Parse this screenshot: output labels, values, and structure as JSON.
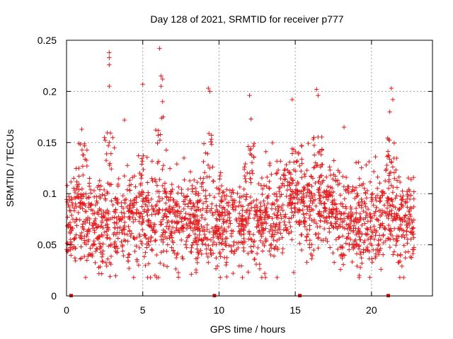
{
  "chart_data": {
    "type": "scatter",
    "title": "Day 128 of 2021, SRMTID for receiver p777",
    "xlabel": "GPS time / hours",
    "ylabel": "SRMTID / TECUs",
    "xlim": [
      0,
      24
    ],
    "ylim": [
      0,
      0.25
    ],
    "x_ticks": [
      0,
      5,
      10,
      15,
      20
    ],
    "x_tick_labels": [
      "0",
      "5",
      "10",
      "15",
      "20"
    ],
    "y_ticks": [
      0,
      0.05,
      0.1,
      0.15,
      0.2,
      0.25
    ],
    "y_tick_labels": [
      "0",
      "0.05",
      "0.1",
      "0.15",
      "0.2",
      "0.25"
    ],
    "grid": true,
    "marker": "+",
    "color": "#e41a1c",
    "baseline_marker_x": [
      0.3,
      9.7,
      15.3,
      21.1
    ],
    "outlier_points": [
      {
        "x": 2.8,
        "y": 0.238
      },
      {
        "x": 2.8,
        "y": 0.233
      },
      {
        "x": 2.8,
        "y": 0.226
      },
      {
        "x": 2.8,
        "y": 0.205
      },
      {
        "x": 6.1,
        "y": 0.242
      },
      {
        "x": 6.2,
        "y": 0.215
      },
      {
        "x": 6.3,
        "y": 0.212
      },
      {
        "x": 6.2,
        "y": 0.205
      },
      {
        "x": 6.3,
        "y": 0.19
      },
      {
        "x": 5.0,
        "y": 0.207
      },
      {
        "x": 9.3,
        "y": 0.203
      },
      {
        "x": 9.4,
        "y": 0.2
      },
      {
        "x": 12.0,
        "y": 0.196
      },
      {
        "x": 14.8,
        "y": 0.192
      },
      {
        "x": 16.4,
        "y": 0.202
      },
      {
        "x": 16.5,
        "y": 0.196
      },
      {
        "x": 21.3,
        "y": 0.203
      },
      {
        "x": 21.4,
        "y": 0.192
      },
      {
        "x": 21.2,
        "y": 0.18
      },
      {
        "x": 18.2,
        "y": 0.165
      },
      {
        "x": 1.0,
        "y": 0.163
      },
      {
        "x": 3.8,
        "y": 0.172
      },
      {
        "x": 12.1,
        "y": 0.173
      },
      {
        "x": 19.2,
        "y": 0.02
      },
      {
        "x": 13.0,
        "y": 0.022
      },
      {
        "x": 14.9,
        "y": 0.023
      },
      {
        "x": 5.8,
        "y": 0.02
      },
      {
        "x": 8.5,
        "y": 0.023
      }
    ],
    "activity_profile": {
      "baseline_mean": 0.072,
      "spread": 0.022,
      "burst_peaks": [
        {
          "x": 1.0,
          "y": 0.15
        },
        {
          "x": 2.8,
          "y": 0.16
        },
        {
          "x": 5.0,
          "y": 0.14
        },
        {
          "x": 6.2,
          "y": 0.18
        },
        {
          "x": 9.3,
          "y": 0.16
        },
        {
          "x": 12.0,
          "y": 0.15
        },
        {
          "x": 14.9,
          "y": 0.145
        },
        {
          "x": 16.4,
          "y": 0.16
        },
        {
          "x": 21.3,
          "y": 0.155
        }
      ],
      "dense_band": {
        "x_start": 14.0,
        "x_end": 17.6,
        "mean": 0.1
      }
    }
  }
}
